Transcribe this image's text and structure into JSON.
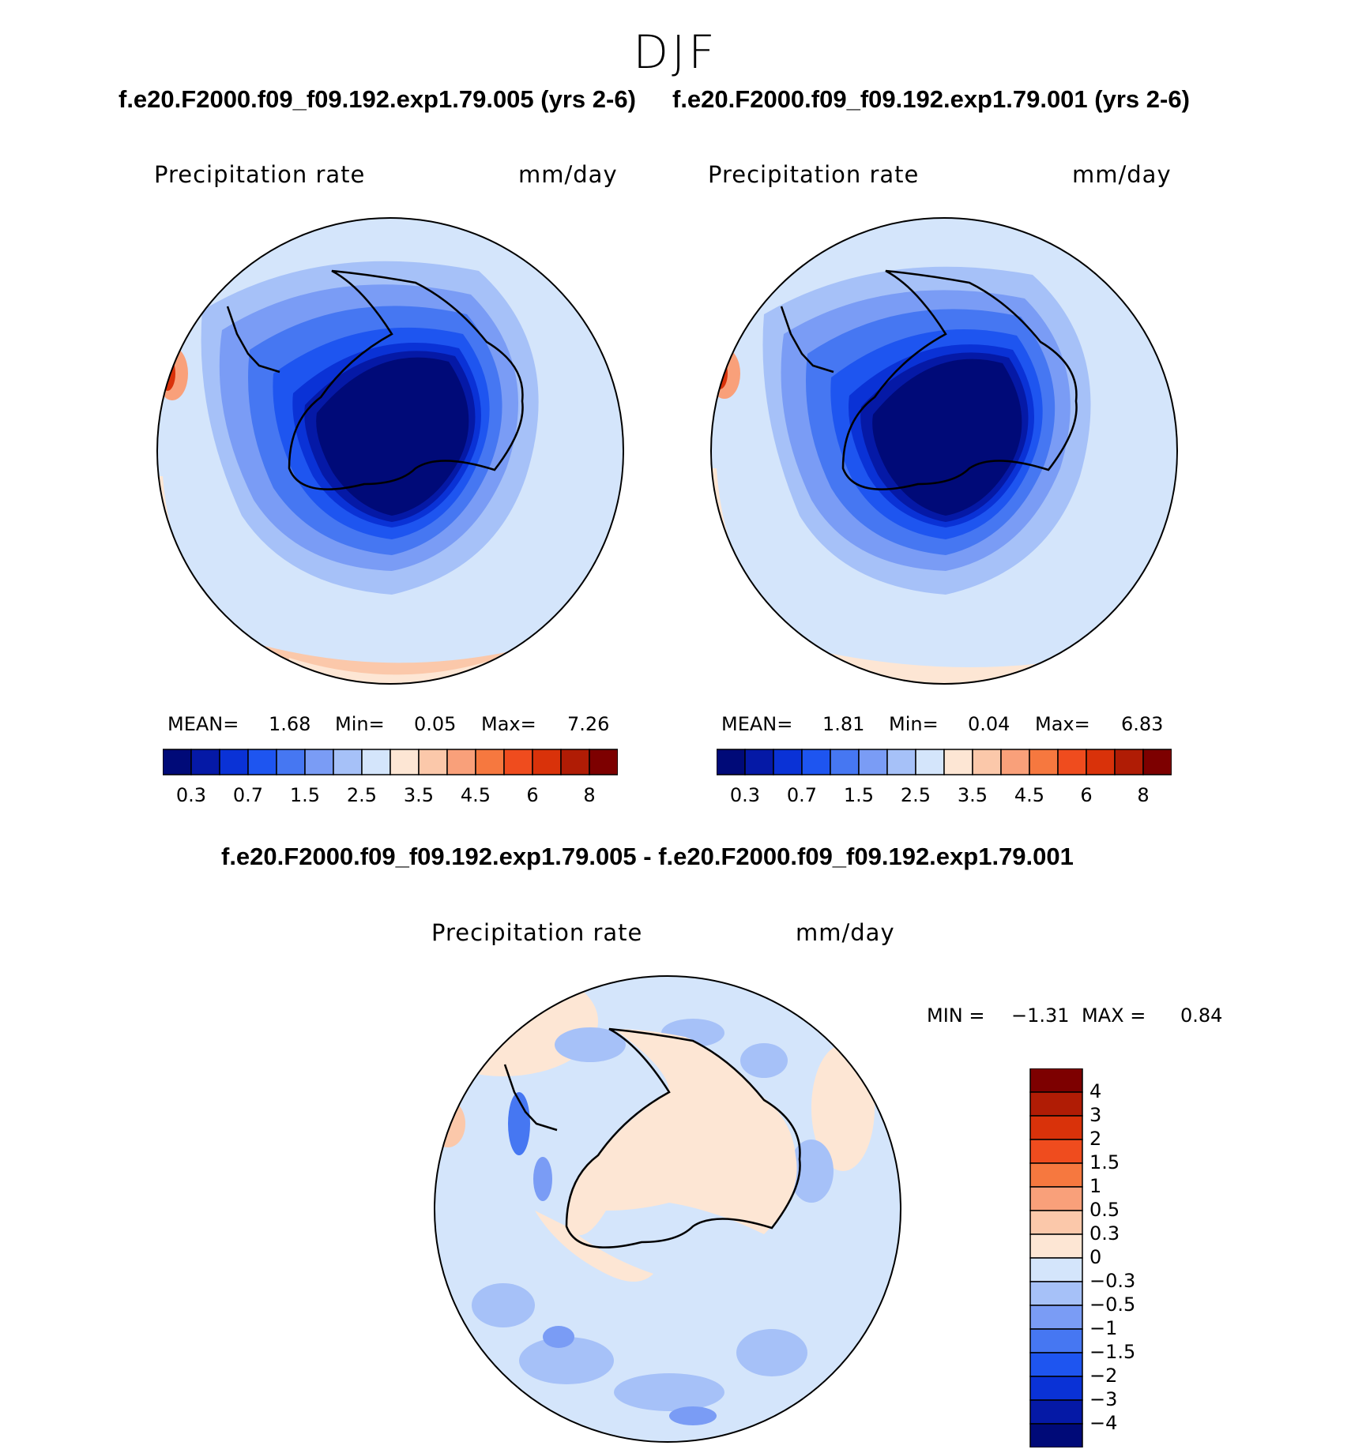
{
  "season": "DJF",
  "case_titles": {
    "left": "f.e20.F2000.f09_f09.192.exp1.79.005 (yrs 2-6)",
    "right": "f.e20.F2000.f09_f09.192.exp1.79.001 (yrs 2-6)",
    "diff": "f.e20.F2000.f09_f09.192.exp1.79.005 - f.e20.F2000.f09_f09.192.exp1.79.001"
  },
  "variable": "Precipitation rate",
  "units": "mm/day",
  "panels": [
    {
      "mean_label": "MEAN=",
      "mean": "1.68",
      "min_label": "Min=",
      "min": "0.05",
      "max_label": "Max=",
      "max": "7.26"
    },
    {
      "mean_label": "MEAN=",
      "mean": "1.81",
      "min_label": "Min=",
      "min": "0.04",
      "max_label": "Max=",
      "max": "6.83"
    }
  ],
  "diff_stats": {
    "min_label": "MIN =",
    "min": "−1.31",
    "max_label": "MAX =",
    "max": "0.84"
  },
  "colorbar": {
    "ticks": [
      "0.3",
      "0.7",
      "1.5",
      "2.5",
      "3.5",
      "4.5",
      "6",
      "8"
    ],
    "colors": [
      "#000a78",
      "#0519a6",
      "#0a32d6",
      "#1e55f0",
      "#4677f2",
      "#7a9cf5",
      "#a6c1f8",
      "#d4e5fb",
      "#fde6d4",
      "#fbc8aa",
      "#f9a07a",
      "#f6783f",
      "#ef4c1e",
      "#d9320a",
      "#b01c05",
      "#7d0000"
    ]
  },
  "diff_colorbar": {
    "ticks": [
      "4",
      "3",
      "2",
      "1.5",
      "1",
      "0.5",
      "0.3",
      "0",
      "−0.3",
      "−0.5",
      "−1",
      "−1.5",
      "−2",
      "−3",
      "−4"
    ],
    "colors": [
      "#7d0000",
      "#b01c05",
      "#d9320a",
      "#ef4c1e",
      "#f6783f",
      "#f9a07a",
      "#fbc8aa",
      "#fde6d4",
      "#d4e5fb",
      "#a6c1f8",
      "#7a9cf5",
      "#4677f2",
      "#1e55f0",
      "#0a32d6",
      "#0519a6",
      "#000a78"
    ]
  }
}
